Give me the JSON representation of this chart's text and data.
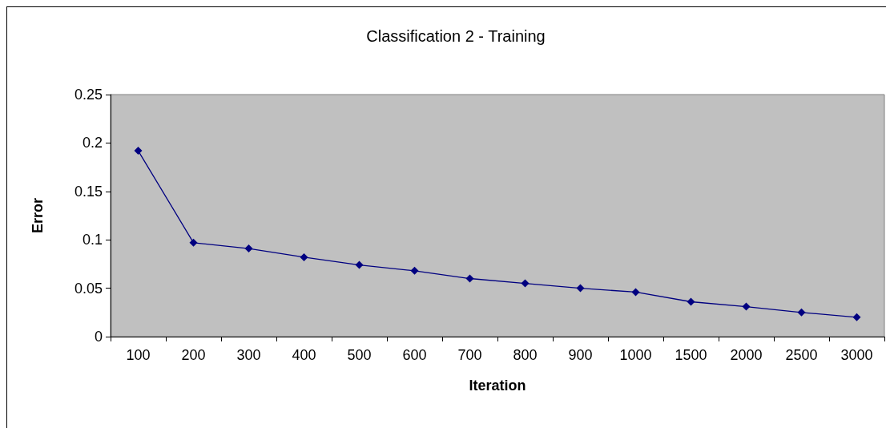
{
  "chart_data": {
    "type": "line",
    "title": "Classification 2 - Training",
    "xlabel": "Iteration",
    "ylabel": "Error",
    "categories": [
      "100",
      "200",
      "300",
      "400",
      "500",
      "600",
      "700",
      "800",
      "900",
      "1000",
      "1500",
      "2000",
      "2500",
      "3000"
    ],
    "series": [
      {
        "color": "#000080",
        "values": [
          0.192,
          0.097,
          0.091,
          0.082,
          0.074,
          0.068,
          0.06,
          0.055,
          0.05,
          0.046,
          0.036,
          0.031,
          0.025,
          0.02
        ]
      }
    ],
    "ylim": [
      0,
      0.25
    ],
    "yticks": [
      0,
      0.05,
      0.1,
      0.15,
      0.2,
      0.25
    ],
    "grid": false,
    "marker": "diamond",
    "line_style": "solid"
  }
}
